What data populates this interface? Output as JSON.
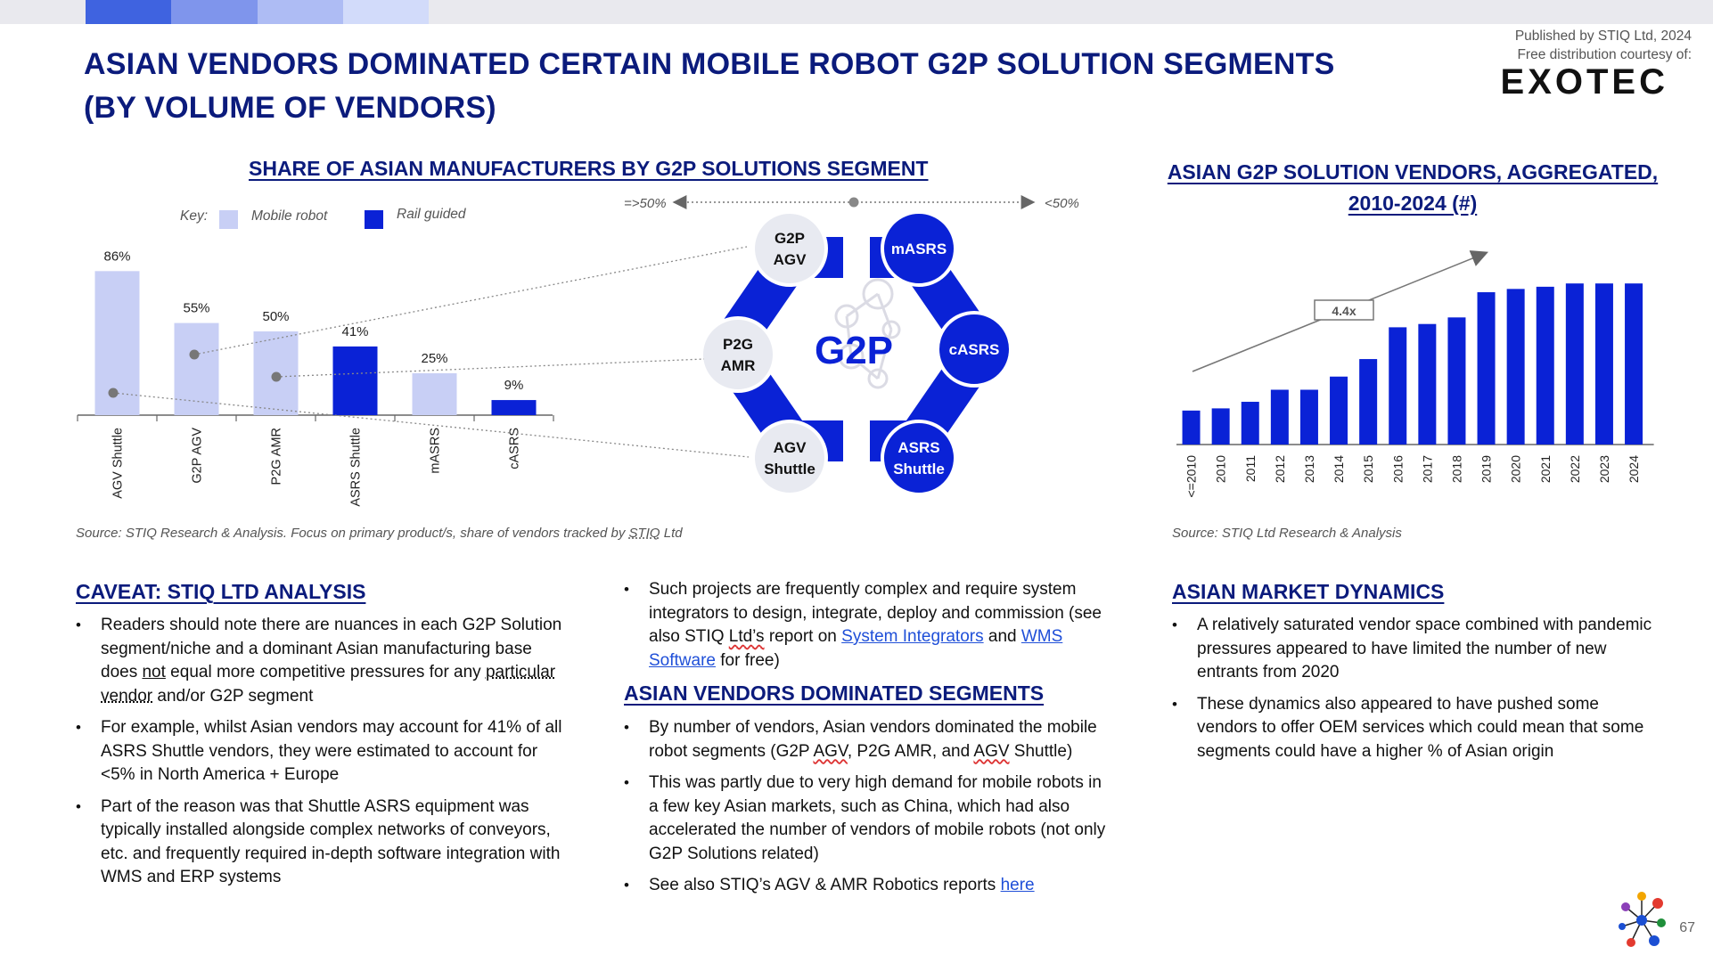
{
  "header": {
    "title": "ASIAN VENDORS DOMINATED CERTAIN MOBILE ROBOT G2P SOLUTION SEGMENTS (BY VOLUME OF VENDORS)",
    "published": "Published by STIQ Ltd, 2024",
    "courtesy": "Free distribution courtesy of:",
    "brand": "EXOTEC"
  },
  "colors": {
    "navy": "#0b1b7c",
    "mobile_robot": "#c8cff5",
    "rail_guided": "#0a22d6",
    "bar_blue": "#0a22d6"
  },
  "left_chart": {
    "heading": "SHARE OF ASIAN MANUFACTURERS BY G2P SOLUTIONS SEGMENT",
    "key_label": "Key:",
    "key_mobile": "Mobile robot",
    "key_rail": "Rail guided",
    "scale_left": "=>50%",
    "scale_right": "<50%",
    "source": "Source: STIQ Research & Analysis. Focus on primary product/s, share of vendors tracked by STIQ Ltd"
  },
  "hexagon": {
    "center": "G2P",
    "nodes": [
      {
        "label": "G2P AGV"
      },
      {
        "label": "mASRS"
      },
      {
        "label": "cASRS"
      },
      {
        "label": "ASRS Shuttle"
      },
      {
        "label": "AGV Shuttle"
      },
      {
        "label": "P2G AMR"
      }
    ]
  },
  "right_chart": {
    "heading_line1": "ASIAN G2P SOLUTION VENDORS, AGGREGATED,",
    "heading_line2": "2010-2024 (#)",
    "growth_label": "4.4x",
    "source": "Source: STIQ Ltd Research & Analysis"
  },
  "chart_data": [
    {
      "type": "bar",
      "title": "SHARE OF ASIAN MANUFACTURERS BY G2P SOLUTIONS SEGMENT",
      "categories": [
        "AGV Shuttle",
        "G2P AGV",
        "P2G AMR",
        "ASRS Shuttle",
        "mASRS",
        "cASRS"
      ],
      "values": [
        86,
        55,
        50,
        41,
        25,
        9
      ],
      "data_labels": [
        "86%",
        "55%",
        "50%",
        "41%",
        "25%",
        "9%"
      ],
      "bar_types": [
        "Mobile robot",
        "Mobile robot",
        "Mobile robot",
        "Rail guided",
        "Mobile robot",
        "Rail guided"
      ],
      "ylim": [
        0,
        100
      ],
      "legend": [
        "Mobile robot",
        "Rail guided"
      ],
      "legend_position": "top-left"
    },
    {
      "type": "bar",
      "title": "ASIAN G2P SOLUTION VENDORS, AGGREGATED, 2010-2024 (#)",
      "categories": [
        "<=2010",
        "2010",
        "2011",
        "2012",
        "2013",
        "2014",
        "2015",
        "2016",
        "2017",
        "2018",
        "2019",
        "2020",
        "2021",
        "2022",
        "2023",
        "2024"
      ],
      "values": [
        31,
        33,
        39,
        50,
        50,
        62,
        78,
        107,
        110,
        116,
        139,
        142,
        144,
        147,
        147,
        147
      ],
      "annotation": "4.4x"
    }
  ],
  "caveat": {
    "heading": "CAVEAT: STIQ LTD ANALYSIS",
    "b1_a": "Readers should note there are nuances in each G2P Solution segment/niche and a dominant Asian manufacturing base does ",
    "b1_not": "not",
    "b1_b": " equal more competitive pressures for any ",
    "b1_part": "particular vendor",
    "b1_c": " and/or G2P segment",
    "b2": "For example, whilst Asian vendors may account for 41% of all ASRS Shuttle vendors, they were estimated to account for <5% in North America + Europe",
    "b3": "Part of the reason was that Shuttle ASRS equipment was typically installed alongside complex networks of conveyors, etc. and frequently required in-depth software integration with WMS and ERP systems"
  },
  "middle": {
    "b0_a": "Such projects are frequently complex and require system integrators to design, integrate, deploy and commission (see also STIQ ",
    "b0_ltd": "Ltd’s",
    "b0_b": " report on ",
    "b0_link1": "System Integrators",
    "b0_c": " and ",
    "b0_link2": "WMS Software",
    "b0_d": " for free)",
    "heading": "ASIAN VENDORS DOMINATED SEGMENTS",
    "b1_a": "By number of vendors, Asian vendors dominated the mobile robot segments (G2P ",
    "b1_agv": "AGV",
    "b1_b": ", P2G AMR, and ",
    "b1_agv2": "AGV",
    "b1_c": " Shuttle)",
    "b2": "This was partly due to very high demand for mobile robots in a few key Asian markets, such as China, which had also accelerated the number of vendors of mobile robots (not only G2P Solutions related)",
    "b3_a": "See also STIQ’s AGV & AMR Robotics reports ",
    "b3_link": "here"
  },
  "dynamics": {
    "heading": "ASIAN MARKET DYNAMICS",
    "b1": "A relatively saturated vendor space combined with pandemic pressures appeared to have limited the number of new entrants from 2020",
    "b2": "These dynamics also appeared to have pushed some vendors to offer OEM services which could mean that some segments could have a higher % of Asian origin"
  },
  "footer": {
    "page_number": "67"
  }
}
